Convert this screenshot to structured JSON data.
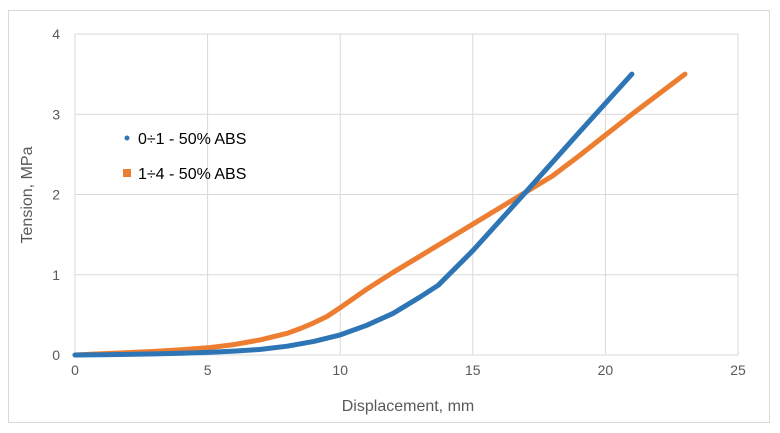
{
  "chart_data": {
    "type": "line",
    "title": "",
    "xlabel": "Displacement, mm",
    "ylabel": "Tension, MPa",
    "xlim": [
      0,
      25
    ],
    "ylim": [
      0,
      4
    ],
    "xticks": [
      0,
      5,
      10,
      15,
      20,
      25
    ],
    "yticks": [
      0,
      1,
      2,
      3,
      4
    ],
    "grid": true,
    "legend_position": "upper-left",
    "series": [
      {
        "name": "0÷1 - 50% ABS",
        "color": "#2e75b6",
        "x": [
          0,
          1,
          2,
          3,
          4,
          5,
          6,
          7,
          8,
          9,
          10,
          11,
          12,
          13,
          13.7,
          15,
          17,
          19,
          21
        ],
        "y": [
          0,
          0.003,
          0.008,
          0.014,
          0.022,
          0.032,
          0.048,
          0.07,
          0.11,
          0.17,
          0.25,
          0.37,
          0.52,
          0.72,
          0.87,
          1.3,
          2.03,
          2.77,
          3.5
        ]
      },
      {
        "name": "1÷4 - 50% ABS",
        "color": "#ed7d31",
        "x": [
          0,
          1,
          2,
          3,
          4,
          5,
          6,
          7,
          8,
          8.5,
          9,
          9.5,
          10,
          11,
          12,
          13,
          14,
          15,
          16,
          17,
          18,
          19,
          20,
          21,
          22,
          23
        ],
        "y": [
          0,
          0.015,
          0.03,
          0.045,
          0.065,
          0.09,
          0.13,
          0.19,
          0.27,
          0.33,
          0.4,
          0.48,
          0.59,
          0.82,
          1.03,
          1.23,
          1.43,
          1.63,
          1.83,
          2.03,
          2.23,
          2.48,
          2.74,
          3.0,
          3.25,
          3.5
        ]
      }
    ]
  }
}
